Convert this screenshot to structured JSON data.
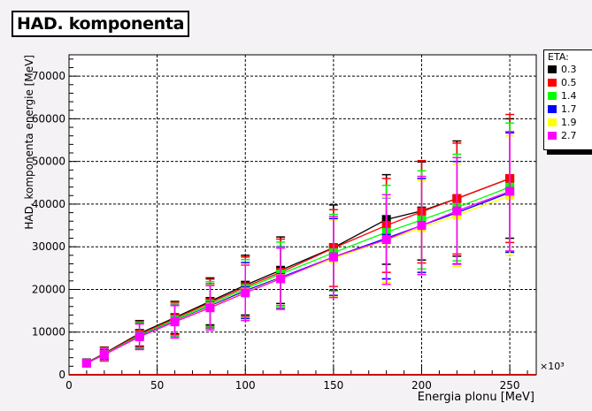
{
  "chart_data": {
    "type": "line",
    "title": "HAD. komponenta",
    "xlabel": "Energia plonu [MeV]",
    "ylabel": "HAD. komponenta energie [MeV]",
    "x_multiplier_label": "×10³",
    "xlim": [
      0,
      265
    ],
    "ylim": [
      0,
      75000
    ],
    "x_ticks": [
      0,
      50,
      100,
      150,
      200,
      250
    ],
    "y_ticks": [
      0,
      10000,
      20000,
      30000,
      40000,
      50000,
      60000,
      70000
    ],
    "y_tick_labels": [
      "0",
      "10000",
      "20000",
      "30000",
      "40000",
      "50000",
      "60000",
      "70000"
    ],
    "grid": true,
    "legend_title": "ETA:",
    "legend_position": "right",
    "x": [
      10,
      20,
      40,
      60,
      80,
      100,
      120,
      150,
      180,
      200,
      220,
      250
    ],
    "series": [
      {
        "name": "0.3",
        "color": "#000000",
        "values": [
          2800,
          5000,
          9700,
          13400,
          17200,
          21000,
          24500,
          29800,
          36400,
          38400,
          41300,
          46000
        ],
        "errors": [
          800,
          1500,
          3000,
          3800,
          5500,
          7000,
          7800,
          10000,
          10500,
          11500,
          13500,
          14000
        ]
      },
      {
        "name": "0.5",
        "color": "#ff0000",
        "values": [
          2700,
          4900,
          9500,
          13200,
          16900,
          20600,
          24000,
          29700,
          35000,
          38200,
          41300,
          46000
        ],
        "errors": [
          800,
          1500,
          3000,
          3800,
          5500,
          7000,
          7800,
          9000,
          11000,
          12000,
          13000,
          15000
        ]
      },
      {
        "name": "1.4",
        "color": "#00ff00",
        "values": [
          2700,
          4800,
          9200,
          12900,
          16500,
          20200,
          23600,
          28600,
          33400,
          36300,
          39200,
          44000
        ],
        "errors": [
          800,
          1500,
          3000,
          3800,
          5300,
          6800,
          7500,
          9000,
          11000,
          11500,
          12500,
          15000
        ]
      },
      {
        "name": "1.7",
        "color": "#0000ff",
        "values": [
          2700,
          4700,
          9000,
          12600,
          16100,
          19700,
          22800,
          27600,
          32000,
          35000,
          38000,
          42700
        ],
        "errors": [
          800,
          1500,
          3000,
          3800,
          5200,
          6600,
          7200,
          9000,
          9500,
          11000,
          12000,
          14000
        ]
      },
      {
        "name": "1.9",
        "color": "#ffff00",
        "values": [
          2700,
          4700,
          8900,
          12500,
          15900,
          19400,
          22600,
          27300,
          31600,
          34500,
          37400,
          42000
        ],
        "errors": [
          800,
          1500,
          3000,
          3800,
          5200,
          6500,
          7200,
          9000,
          10000,
          11000,
          12000,
          14000
        ]
      },
      {
        "name": "2.7",
        "color": "#ff00ff",
        "values": [
          2700,
          4700,
          8900,
          12400,
          15700,
          19200,
          22500,
          27600,
          31700,
          35000,
          38400,
          43000
        ],
        "errors": [
          800,
          1500,
          3000,
          3800,
          5200,
          6500,
          7200,
          9500,
          10500,
          11500,
          12500,
          14000
        ]
      }
    ]
  }
}
